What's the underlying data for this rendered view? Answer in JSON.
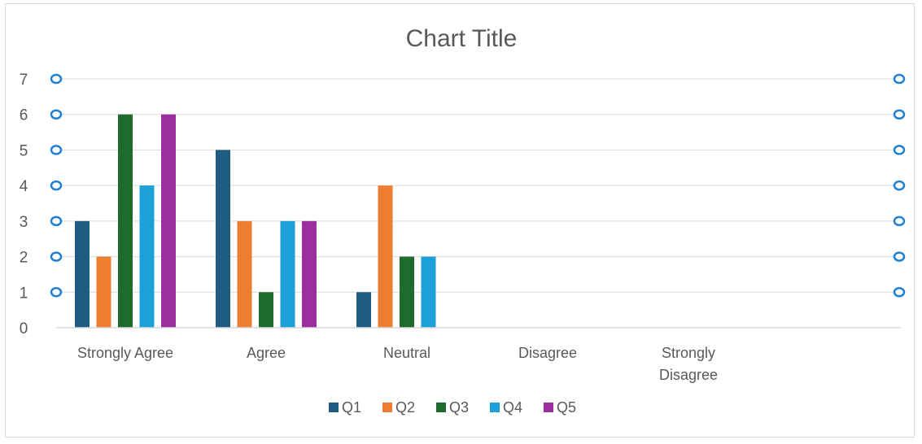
{
  "chart_data": {
    "type": "bar",
    "title": "Chart Title",
    "categories": [
      "Strongly Agree",
      "Agree",
      "Neutral",
      "Disagree",
      "Strongly Disagree"
    ],
    "category_lines": [
      [
        "Strongly Agree"
      ],
      [
        "Agree"
      ],
      [
        "Neutral"
      ],
      [
        "Disagree"
      ],
      [
        "Strongly",
        "Disagree"
      ]
    ],
    "series": [
      {
        "name": "Q1",
        "color": "#1f5c82",
        "values": [
          3,
          5,
          1,
          null,
          null
        ]
      },
      {
        "name": "Q2",
        "color": "#ed7d31",
        "values": [
          2,
          3,
          4,
          null,
          null
        ]
      },
      {
        "name": "Q3",
        "color": "#1e6b2e",
        "values": [
          6,
          1,
          2,
          null,
          null
        ]
      },
      {
        "name": "Q4",
        "color": "#1ca0d8",
        "values": [
          4,
          3,
          2,
          null,
          null
        ]
      },
      {
        "name": "Q5",
        "color": "#9b2fa0",
        "values": [
          6,
          3,
          null,
          null,
          null
        ]
      }
    ],
    "y_ticks": [
      "0",
      "1",
      "2",
      "3",
      "4",
      "5",
      "6",
      "7"
    ],
    "ylim": [
      0,
      7
    ],
    "xlabel": "",
    "ylabel": "",
    "grid": true,
    "legend_position": "bottom",
    "selection_handle_color": "#1f7fd0"
  }
}
